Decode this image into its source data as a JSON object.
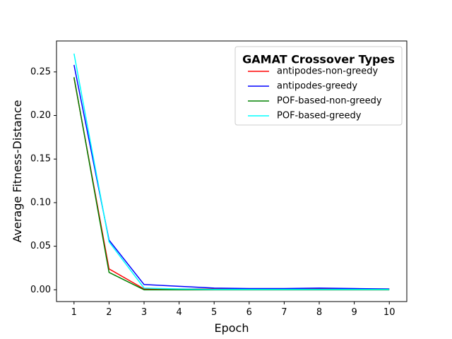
{
  "chart_data": {
    "type": "line",
    "xlabel": "Epoch",
    "ylabel": "Average Fitness-Distance",
    "x": [
      1,
      2,
      3,
      4,
      5,
      6,
      7,
      8,
      9,
      10
    ],
    "xlim": [
      0.5,
      10.5
    ],
    "ylim": [
      -0.0135,
      0.2855
    ],
    "xticks": [
      1,
      2,
      3,
      4,
      5,
      6,
      7,
      8,
      9,
      10
    ],
    "yticks": [
      0.0,
      0.05,
      0.1,
      0.15,
      0.2,
      0.25
    ],
    "ytick_labels": [
      "0.00",
      "0.05",
      "0.10",
      "0.15",
      "0.20",
      "0.25"
    ],
    "grid": false,
    "legend": {
      "title": "GAMAT Crossover Types",
      "placement": "top-right"
    },
    "series": [
      {
        "name": "antipodes-non-greedy",
        "color": "#ff0000",
        "values": [
          0.243,
          0.024,
          0.001,
          0.001,
          0.001,
          0.001,
          0.001,
          0.001,
          0.001,
          0.001
        ]
      },
      {
        "name": "antipodes-greedy",
        "color": "#0000ff",
        "values": [
          0.258,
          0.057,
          0.006,
          0.004,
          0.002,
          0.0015,
          0.0015,
          0.002,
          0.0015,
          0.001
        ]
      },
      {
        "name": "POF-based-non-greedy",
        "color": "#008000",
        "values": [
          0.244,
          0.02,
          0.0,
          0.0,
          0.0,
          0.0,
          0.0,
          0.0,
          0.0,
          0.0
        ]
      },
      {
        "name": "POF-based-greedy",
        "color": "#00ffff",
        "values": [
          0.271,
          0.055,
          0.002,
          0.001,
          0.0005,
          0.0005,
          0.0005,
          0.0005,
          0.0005,
          0.0005
        ]
      }
    ]
  }
}
